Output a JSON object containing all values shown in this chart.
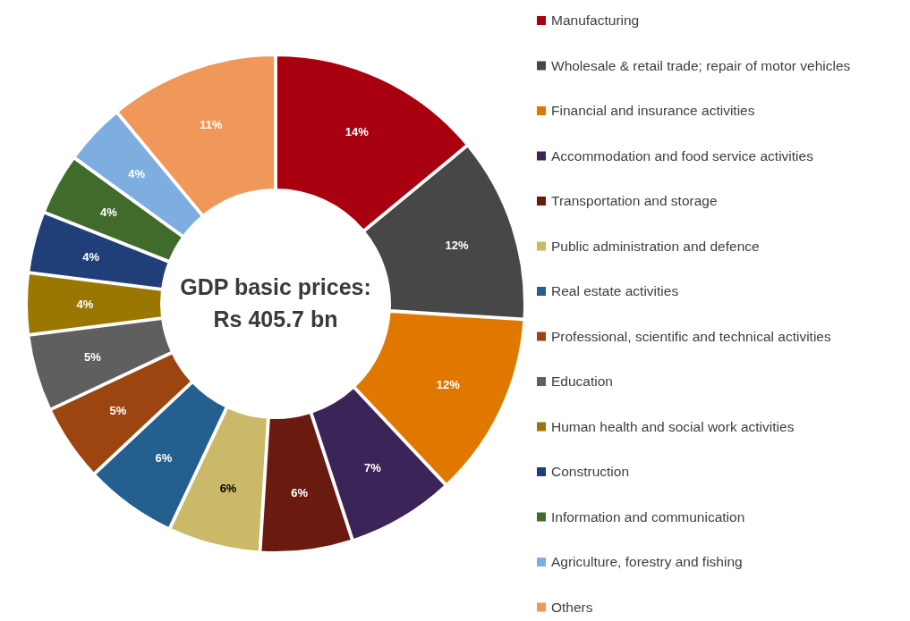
{
  "chart_data": {
    "type": "donut",
    "title": "GDP basic prices:",
    "subtitle": "Rs 405.7 bn",
    "categories": [
      "Manufacturing",
      "Wholesale & retail trade; repair of motor vehicles",
      "Financial and insurance activities",
      "Accommodation and food service activities",
      "Transportation and storage",
      "Public administration and defence",
      "Real estate activities",
      "Professional, scientific and technical activities",
      "Education",
      "Human health and social work activities",
      "Construction",
      "Information and communication",
      "Agriculture, forestry and fishing",
      "Others"
    ],
    "values": [
      14,
      12,
      12,
      7,
      6,
      6,
      6,
      5,
      5,
      4,
      4,
      4,
      4,
      11
    ],
    "value_labels": [
      "14%",
      "12%",
      "12%",
      "7%",
      "6%",
      "6%",
      "6%",
      "5%",
      "5%",
      "4%",
      "4%",
      "4%",
      "4%",
      "11%"
    ],
    "colors": [
      "#a8000f",
      "#474747",
      "#e07800",
      "#3b2558",
      "#6b1a10",
      "#cbb96a",
      "#245f8f",
      "#9c4511",
      "#5f5f5f",
      "#9a7700",
      "#203e78",
      "#416b2a",
      "#7eaee0",
      "#f0975a"
    ],
    "legend": "right"
  }
}
